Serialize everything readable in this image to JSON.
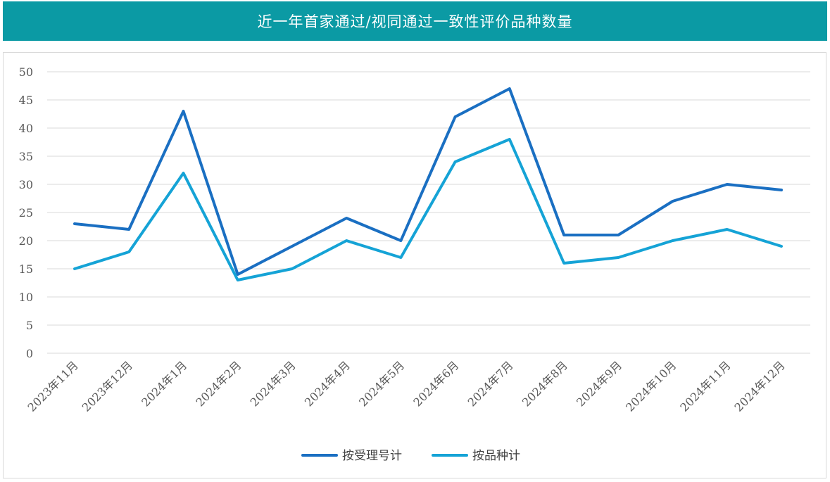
{
  "title": "近一年首家通过/视同通过一致性评价品种数量",
  "colors": {
    "title_bg": "#0b9aa4",
    "series_1": "#1a6fc2",
    "series_2": "#15a3d6",
    "grid": "#d9d9d9",
    "axis_text": "#595959"
  },
  "chart_data": {
    "type": "line",
    "title": "近一年首家通过/视同通过一致性评价品种数量",
    "categories": [
      "2023年11月",
      "2023年12月",
      "2024年1月",
      "2024年2月",
      "2024年3月",
      "2024年4月",
      "2024年5月",
      "2024年6月",
      "2024年7月",
      "2024年8月",
      "2024年9月",
      "2024年10月",
      "2024年11月",
      "2024年12月"
    ],
    "series": [
      {
        "name": "按受理号计",
        "values": [
          23,
          22,
          43,
          14,
          19,
          24,
          20,
          42,
          47,
          21,
          21,
          27,
          30,
          29
        ]
      },
      {
        "name": "按品种计",
        "values": [
          15,
          18,
          32,
          13,
          15,
          20,
          17,
          34,
          38,
          16,
          17,
          20,
          22,
          19
        ]
      }
    ],
    "ylim": [
      0,
      50
    ],
    "yticks": [
      0,
      5,
      10,
      15,
      20,
      25,
      30,
      35,
      40,
      45,
      50
    ],
    "grid": true,
    "legend_position": "bottom-center",
    "xlabel": "",
    "ylabel": ""
  }
}
